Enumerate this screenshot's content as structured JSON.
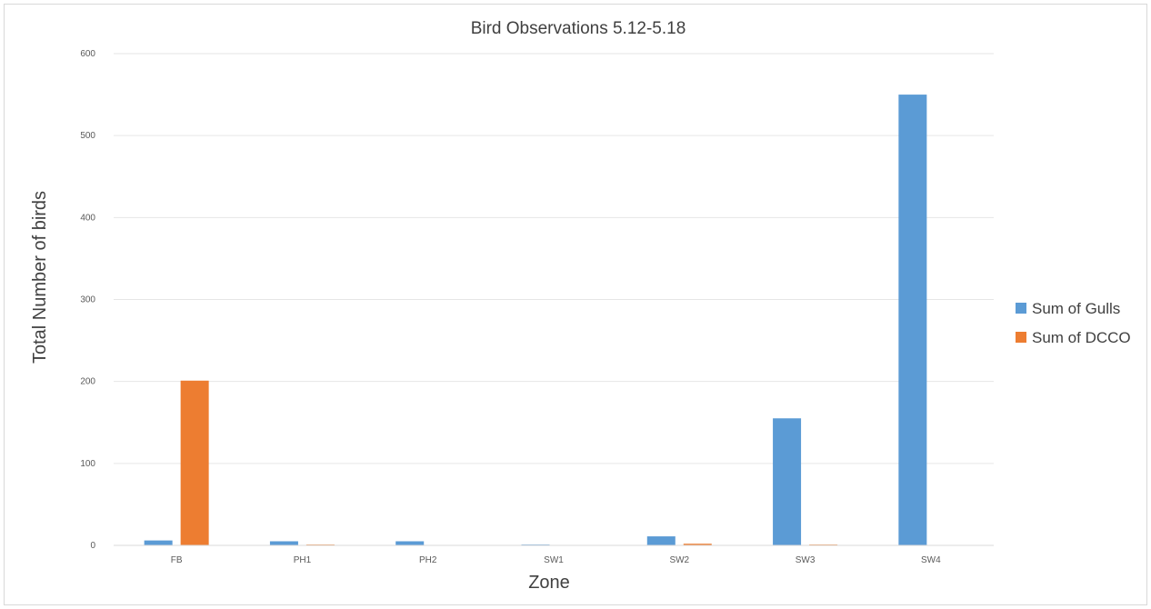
{
  "chart_data": {
    "type": "bar",
    "title": "Bird Observations 5.12-5.18",
    "xlabel": "Zone",
    "ylabel": "Total Number of birds",
    "categories": [
      "FB",
      "PH1",
      "PH2",
      "SW1",
      "SW2",
      "SW3",
      "SW4"
    ],
    "series": [
      {
        "name": "Sum of Gulls",
        "color": "#5b9bd5",
        "values": [
          6,
          5,
          5,
          1,
          11,
          155,
          550
        ]
      },
      {
        "name": "Sum of DCCO",
        "color": "#ed7d31",
        "values": [
          201,
          1,
          0,
          0,
          2,
          1,
          0
        ]
      }
    ],
    "ylim": [
      0,
      600
    ],
    "yticks": [
      0,
      100,
      200,
      300,
      400,
      500,
      600
    ],
    "grid": true,
    "legend_position": "right"
  }
}
